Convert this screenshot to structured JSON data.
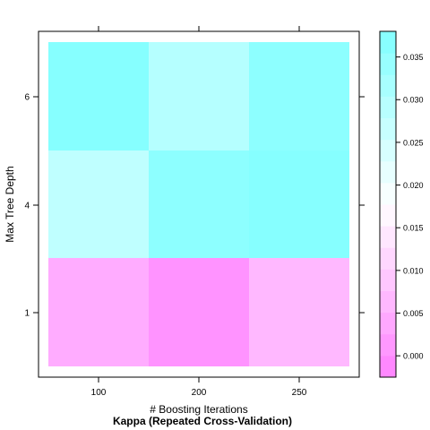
{
  "chart_data": {
    "type": "heatmap",
    "title": "",
    "xlabel": "# Boosting Iterations",
    "ylabel": "Max Tree Depth",
    "caption": "Kappa (Repeated Cross-Validation)",
    "x": [
      "100",
      "200",
      "250"
    ],
    "y": [
      "1",
      "4",
      "6"
    ],
    "values": [
      [
        0.0045,
        0.0005,
        0.0065
      ],
      [
        0.028,
        0.036,
        0.037
      ],
      [
        0.037,
        0.0295,
        0.036
      ]
    ],
    "colorbar": {
      "range": [
        -0.0025,
        0.038
      ],
      "ticks": [
        0.0,
        0.005,
        0.01,
        0.015,
        0.02,
        0.025,
        0.03,
        0.035
      ],
      "tick_labels": [
        "0.000",
        "0.005",
        "0.010",
        "0.015",
        "0.020",
        "0.025",
        "0.030",
        "0.035"
      ],
      "low_color": "#ff80ff",
      "mid_color": "#ffffff",
      "high_color": "#80ffff",
      "placement": "right"
    },
    "grid": false
  }
}
